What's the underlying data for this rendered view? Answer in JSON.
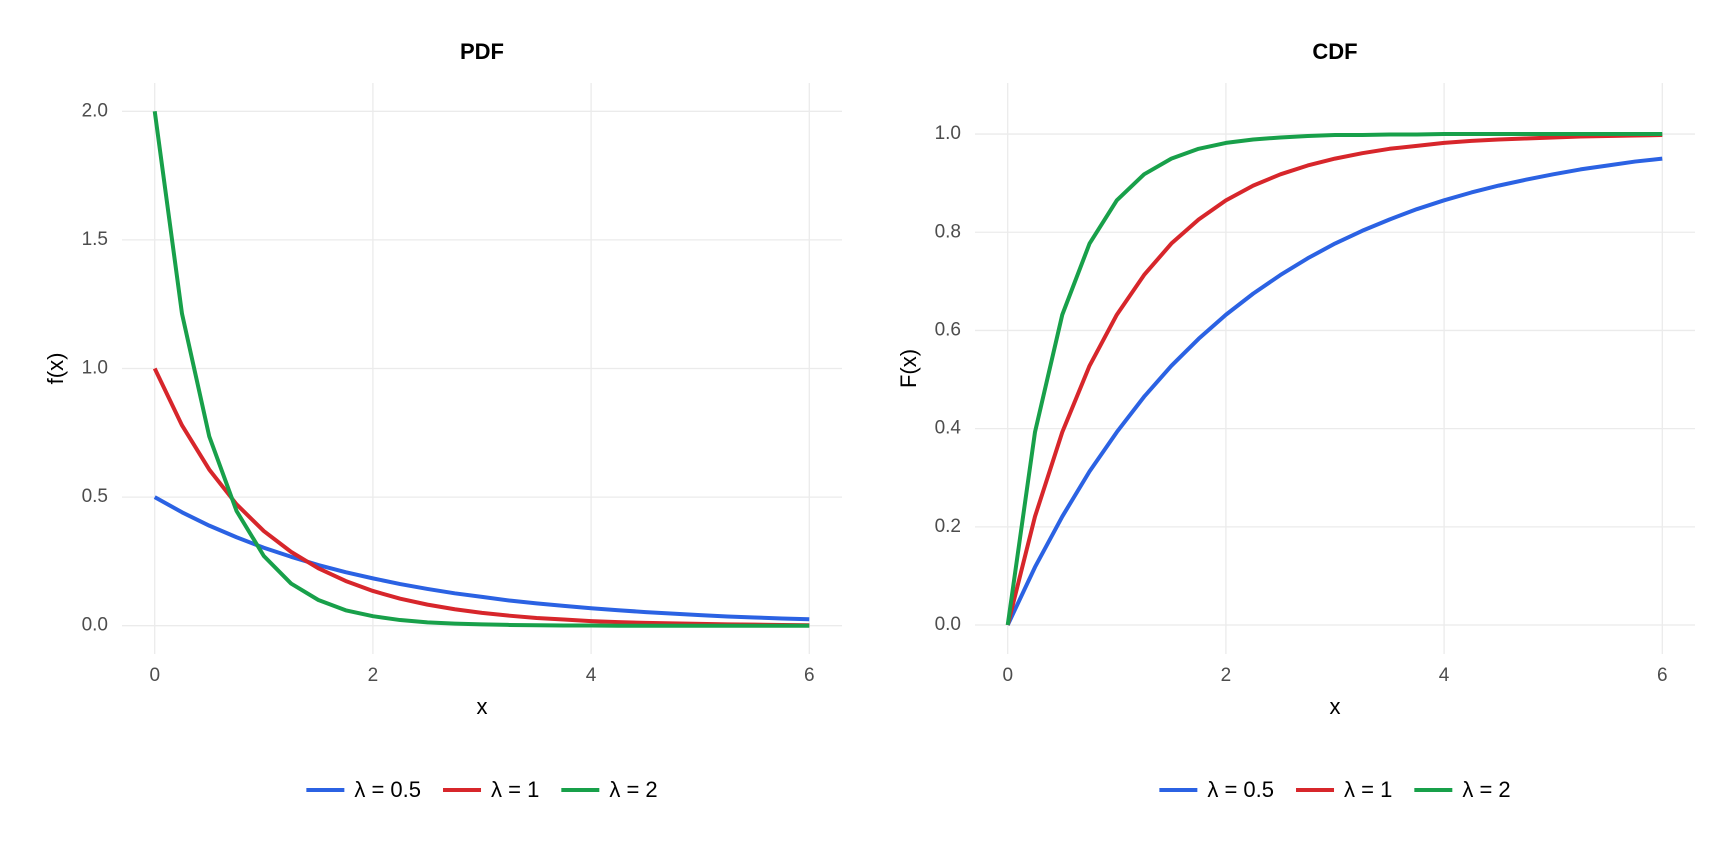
{
  "chart_data": [
    {
      "type": "line",
      "title": "PDF",
      "x_label": "x",
      "y_label": "f(x)",
      "x": [
        0,
        0.25,
        0.5,
        0.75,
        1,
        1.25,
        1.5,
        1.75,
        2,
        2.25,
        2.5,
        2.75,
        3,
        3.25,
        3.5,
        3.75,
        4,
        4.25,
        4.5,
        4.75,
        5,
        5.25,
        5.5,
        5.75,
        6
      ],
      "series": [
        {
          "name": "λ = 0.5",
          "color": "#2b62e3",
          "values": [
            0.5,
            0.441,
            0.389,
            0.344,
            0.303,
            0.268,
            0.236,
            0.208,
            0.184,
            0.162,
            0.143,
            0.126,
            0.112,
            0.098,
            0.087,
            0.077,
            0.068,
            0.06,
            0.053,
            0.047,
            0.041,
            0.036,
            0.032,
            0.028,
            0.025
          ]
        },
        {
          "name": "λ = 1",
          "color": "#d7262b",
          "values": [
            1,
            0.779,
            0.607,
            0.472,
            0.368,
            0.287,
            0.223,
            0.174,
            0.135,
            0.105,
            0.082,
            0.064,
            0.05,
            0.039,
            0.03,
            0.024,
            0.018,
            0.014,
            0.011,
            0.009,
            0.007,
            0.005,
            0.004,
            0.003,
            0.002
          ]
        },
        {
          "name": "λ = 2",
          "color": "#18a04a",
          "values": [
            2,
            1.213,
            0.736,
            0.446,
            0.271,
            0.164,
            0.1,
            0.06,
            0.037,
            0.022,
            0.013,
            0.008,
            0.005,
            0.003,
            0.002,
            0.001,
            0.001,
            0,
            0,
            0,
            0,
            0,
            0,
            0,
            0
          ]
        }
      ],
      "xlim": [
        -0.3,
        6.3
      ],
      "xticks": [
        0,
        2,
        4,
        6
      ],
      "ylim": [
        -0.11,
        2.11
      ],
      "yticks": [
        {
          "value": 0,
          "label": "0.0"
        },
        0.5,
        {
          "value": 1,
          "label": "1.0"
        },
        1.5,
        {
          "value": 2,
          "label": "2.0"
        }
      ],
      "grid": true,
      "legend": "bottom"
    },
    {
      "type": "line",
      "title": "CDF",
      "x_label": "x",
      "y_label": "F(x)",
      "x": [
        0,
        0.25,
        0.5,
        0.75,
        1,
        1.25,
        1.5,
        1.75,
        2,
        2.25,
        2.5,
        2.75,
        3,
        3.25,
        3.5,
        3.75,
        4,
        4.25,
        4.5,
        4.75,
        5,
        5.25,
        5.5,
        5.75,
        6
      ],
      "series": [
        {
          "name": "λ = 0.5",
          "color": "#2b62e3",
          "values": [
            0,
            0.118,
            0.221,
            0.313,
            0.393,
            0.465,
            0.528,
            0.583,
            0.632,
            0.675,
            0.713,
            0.747,
            0.777,
            0.803,
            0.826,
            0.847,
            0.865,
            0.881,
            0.895,
            0.907,
            0.918,
            0.928,
            0.936,
            0.944,
            0.95
          ]
        },
        {
          "name": "λ = 1",
          "color": "#d7262b",
          "values": [
            0,
            0.221,
            0.393,
            0.528,
            0.632,
            0.713,
            0.777,
            0.826,
            0.865,
            0.895,
            0.918,
            0.936,
            0.95,
            0.961,
            0.97,
            0.976,
            0.982,
            0.986,
            0.989,
            0.991,
            0.993,
            0.995,
            0.996,
            0.997,
            0.998
          ]
        },
        {
          "name": "λ = 2",
          "color": "#18a04a",
          "values": [
            0,
            0.393,
            0.632,
            0.777,
            0.865,
            0.918,
            0.95,
            0.97,
            0.982,
            0.989,
            0.993,
            0.996,
            0.998,
            0.998,
            0.999,
            0.999,
            1,
            1,
            1,
            1,
            1,
            1,
            1,
            1,
            1
          ]
        }
      ],
      "xlim": [
        -0.3,
        6.3
      ],
      "xticks": [
        0,
        2,
        4,
        6
      ],
      "ylim": [
        -0.059,
        1.104
      ],
      "yticks": [
        {
          "value": 0,
          "label": "0.0"
        },
        0.2,
        0.4,
        0.6,
        0.8,
        {
          "value": 1,
          "label": "1.0"
        }
      ],
      "grid": true,
      "legend": "bottom"
    }
  ]
}
